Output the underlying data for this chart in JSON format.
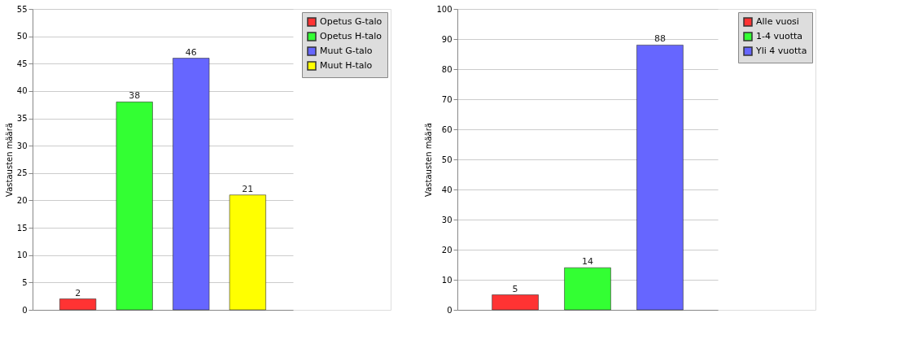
{
  "chart_data": [
    {
      "type": "bar",
      "ylabel": "Vastausten määrä",
      "categories": [
        null,
        null,
        null,
        null
      ],
      "series": [
        {
          "name": "Opetus G-talo",
          "color": "#ff3333",
          "values": [
            2,
            null,
            null,
            null
          ]
        },
        {
          "name": "Opetus H-talo",
          "color": "#33ff33",
          "values": [
            null,
            38,
            null,
            null
          ]
        },
        {
          "name": "Muut G-talo",
          "color": "#6666ff",
          "values": [
            null,
            null,
            46,
            null
          ]
        },
        {
          "name": "Muut H-talo",
          "color": "#ffff00",
          "values": [
            null,
            null,
            null,
            21
          ]
        }
      ],
      "ylim": [
        0,
        55
      ],
      "yticks": [
        0,
        5,
        10,
        15,
        20,
        25,
        30,
        35,
        40,
        45,
        50,
        55
      ],
      "grid": "y",
      "legend": "top right",
      "data_labels": true
    },
    {
      "type": "bar",
      "ylabel": "Vastausten määrä",
      "categories": [
        null,
        null,
        null
      ],
      "series": [
        {
          "name": "Alle vuosi",
          "color": "#ff3333",
          "values": [
            5,
            null,
            null
          ]
        },
        {
          "name": "1-4 vuotta",
          "color": "#33ff33",
          "values": [
            null,
            14,
            null
          ]
        },
        {
          "name": "Yli 4 vuotta",
          "color": "#6666ff",
          "values": [
            null,
            null,
            88
          ]
        }
      ],
      "ylim": [
        0,
        100
      ],
      "yticks": [
        0,
        10,
        20,
        30,
        40,
        50,
        60,
        70,
        80,
        90,
        100
      ],
      "grid": "y",
      "legend": "top right",
      "data_labels": true
    }
  ]
}
